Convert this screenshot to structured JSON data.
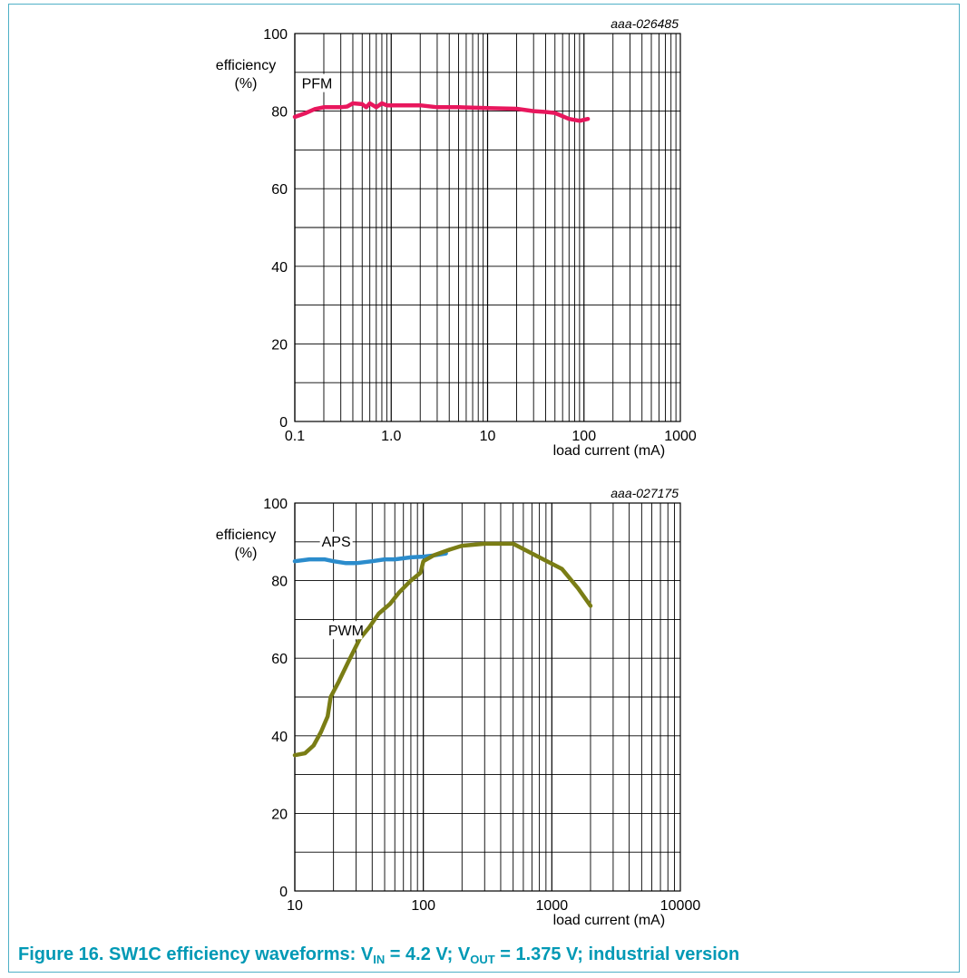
{
  "caption": {
    "part1": "Figure 16.  SW1C efficiency waveforms: V",
    "sub1": "IN",
    "part2": " = 4.2 V; V",
    "sub2": "OUT",
    "part3": " = 1.375 V; industrial version"
  },
  "chart_data": [
    {
      "type": "line",
      "id_label": "aaa-026485",
      "xlabel": "load current (mA)",
      "ylabel": [
        "efficiency",
        "(%)"
      ],
      "xscale": "log",
      "xlim": [
        0.1,
        1000
      ],
      "ylim": [
        0,
        100
      ],
      "xticks": [
        0.1,
        1,
        10,
        100,
        1000
      ],
      "xtick_labels": [
        "0.1",
        "1.0",
        "10",
        "100",
        "1000"
      ],
      "yticks": [
        0,
        20,
        40,
        60,
        80,
        100
      ],
      "ytick_labels": [
        "0",
        "20",
        "40",
        "60",
        "80",
        "100"
      ],
      "grid": true,
      "series": [
        {
          "name": "PFM",
          "color": "#e8175d",
          "points": [
            [
              0.1,
              78.5
            ],
            [
              0.13,
              79.5
            ],
            [
              0.16,
              80.5
            ],
            [
              0.2,
              81
            ],
            [
              0.3,
              81
            ],
            [
              0.35,
              81.2
            ],
            [
              0.4,
              82
            ],
            [
              0.5,
              81.8
            ],
            [
              0.55,
              81
            ],
            [
              0.6,
              82
            ],
            [
              0.7,
              81
            ],
            [
              0.8,
              82
            ],
            [
              0.9,
              81.5
            ],
            [
              1.0,
              81.5
            ],
            [
              1.5,
              81.5
            ],
            [
              2,
              81.5
            ],
            [
              3,
              81
            ],
            [
              5,
              81
            ],
            [
              10,
              80.8
            ],
            [
              20,
              80.6
            ],
            [
              30,
              80
            ],
            [
              40,
              79.8
            ],
            [
              50,
              79.5
            ],
            [
              70,
              78
            ],
            [
              90,
              77.5
            ],
            [
              110,
              78
            ]
          ]
        }
      ],
      "annotations": [
        {
          "text": "PFM",
          "x": 0.17,
          "y": 87
        }
      ]
    },
    {
      "type": "line",
      "id_label": "aaa-027175",
      "xlabel": "load current (mA)",
      "ylabel": [
        "efficiency",
        "(%)"
      ],
      "xscale": "log",
      "xlim": [
        10,
        10000
      ],
      "ylim": [
        0,
        100
      ],
      "xticks": [
        10,
        100,
        1000,
        10000
      ],
      "xtick_labels": [
        "10",
        "100",
        "1000",
        "10000"
      ],
      "yticks": [
        0,
        20,
        40,
        60,
        80,
        100
      ],
      "ytick_labels": [
        "0",
        "20",
        "40",
        "60",
        "80",
        "100"
      ],
      "grid": true,
      "series": [
        {
          "name": "APS",
          "color": "#2b8ccc",
          "points": [
            [
              10,
              85
            ],
            [
              13,
              85.5
            ],
            [
              17,
              85.5
            ],
            [
              20,
              85
            ],
            [
              25,
              84.5
            ],
            [
              30,
              84.5
            ],
            [
              40,
              85
            ],
            [
              50,
              85.5
            ],
            [
              60,
              85.5
            ],
            [
              80,
              86
            ],
            [
              100,
              86.2
            ],
            [
              120,
              86.5
            ],
            [
              150,
              87
            ]
          ]
        },
        {
          "name": "PWM",
          "color": "#7a7d15",
          "points": [
            [
              10,
              35
            ],
            [
              12,
              35.5
            ],
            [
              14,
              37.5
            ],
            [
              16,
              41
            ],
            [
              18,
              45
            ],
            [
              19,
              50
            ],
            [
              22,
              54
            ],
            [
              26,
              59
            ],
            [
              32,
              65
            ],
            [
              38,
              68
            ],
            [
              45,
              71.5
            ],
            [
              55,
              74
            ],
            [
              65,
              77
            ],
            [
              80,
              80
            ],
            [
              95,
              82
            ],
            [
              100,
              85
            ],
            [
              120,
              86.5
            ],
            [
              160,
              88
            ],
            [
              200,
              89
            ],
            [
              300,
              89.5
            ],
            [
              500,
              89.5
            ],
            [
              800,
              86
            ],
            [
              1200,
              83
            ],
            [
              1600,
              78
            ],
            [
              2000,
              73.5
            ]
          ]
        }
      ],
      "annotations": [
        {
          "text": "APS",
          "x": 21,
          "y": 90
        },
        {
          "text": "PWM",
          "x": 25,
          "y": 67
        }
      ]
    }
  ]
}
